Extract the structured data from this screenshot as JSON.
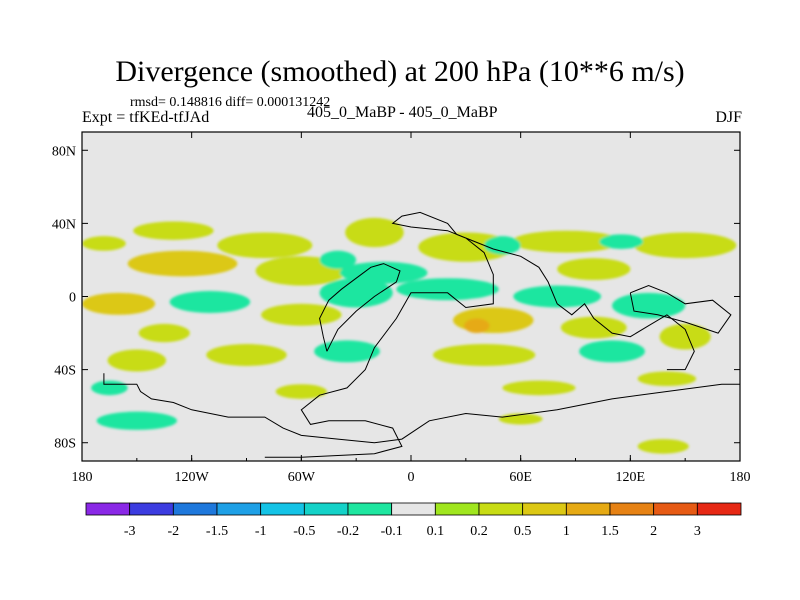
{
  "header": {
    "title": "Divergence (smoothed) at 200 hPa (10**6 m/s)",
    "stats": "rmsd= 0.148816 diff= 0.000131242",
    "left_label": "Expt = tfKEd-tfJAd",
    "center_label": "405_0_MaBP - 405_0_MaBP",
    "right_label": "DJF"
  },
  "chart_data": {
    "type": "heatmap",
    "title": "Divergence (smoothed) at 200 hPa (10**6 m/s)",
    "xlim": [
      -180,
      180
    ],
    "ylim": [
      -90,
      90
    ],
    "x_ticks": [
      {
        "value": -180,
        "label": "180"
      },
      {
        "value": -120,
        "label": "120W"
      },
      {
        "value": -60,
        "label": "60W"
      },
      {
        "value": 0,
        "label": "0"
      },
      {
        "value": 60,
        "label": "60E"
      },
      {
        "value": 120,
        "label": "120E"
      },
      {
        "value": 180,
        "label": "180"
      }
    ],
    "y_ticks": [
      {
        "value": 80,
        "label": "80N"
      },
      {
        "value": 40,
        "label": "40N"
      },
      {
        "value": 0,
        "label": "0"
      },
      {
        "value": -40,
        "label": "40S"
      },
      {
        "value": -80,
        "label": "80S"
      }
    ],
    "background_color": "#e6e6e6",
    "colorbar": {
      "colors": [
        "#8a28e6",
        "#3c3ce0",
        "#1e78dc",
        "#1ea0e6",
        "#14c3e6",
        "#14d2c8",
        "#1ee6a0",
        "#e6e6e6",
        "#a0e61e",
        "#c8dc14",
        "#dcc814",
        "#e6aa14",
        "#e68214",
        "#e65a14",
        "#e62814"
      ],
      "labels": [
        "-3",
        "-2",
        "-1.5",
        "-1",
        "-0.5",
        "-0.2",
        "-0.1",
        "0.1",
        "0.2",
        "0.5",
        "1",
        "1.5",
        "2",
        "3"
      ]
    },
    "features": [
      {
        "lon": -168,
        "lat": 29,
        "rx": 12,
        "ry": 4,
        "value": 0.25
      },
      {
        "lon": -130,
        "lat": 36,
        "rx": 22,
        "ry": 5,
        "value": 0.25
      },
      {
        "lon": -80,
        "lat": 28,
        "rx": 26,
        "ry": 7,
        "value": 0.25
      },
      {
        "lon": -20,
        "lat": 35,
        "rx": 16,
        "ry": 8,
        "value": 0.25
      },
      {
        "lon": -125,
        "lat": 18,
        "rx": 30,
        "ry": 7,
        "value": 0.6
      },
      {
        "lon": -60,
        "lat": 14,
        "rx": 25,
        "ry": 8,
        "value": 0.25
      },
      {
        "lon": 30,
        "lat": 27,
        "rx": 26,
        "ry": 8,
        "value": 0.25
      },
      {
        "lon": 85,
        "lat": 30,
        "rx": 30,
        "ry": 6,
        "value": 0.25
      },
      {
        "lon": 150,
        "lat": 28,
        "rx": 28,
        "ry": 7,
        "value": 0.25
      },
      {
        "lon": 100,
        "lat": 15,
        "rx": 20,
        "ry": 6,
        "value": 0.25
      },
      {
        "lon": -15,
        "lat": 13,
        "rx": 24,
        "ry": 6,
        "value": -0.15
      },
      {
        "lon": 50,
        "lat": 28,
        "rx": 10,
        "ry": 5,
        "value": -0.15
      },
      {
        "lon": 115,
        "lat": 30,
        "rx": 12,
        "ry": 4,
        "value": -0.15
      },
      {
        "lon": -40,
        "lat": 20,
        "rx": 10,
        "ry": 5,
        "value": -0.15
      },
      {
        "lon": -160,
        "lat": -4,
        "rx": 20,
        "ry": 6,
        "value": 0.6
      },
      {
        "lon": -110,
        "lat": -3,
        "rx": 22,
        "ry": 6,
        "value": -0.15
      },
      {
        "lon": -30,
        "lat": 2,
        "rx": 20,
        "ry": 8,
        "value": -0.15
      },
      {
        "lon": 20,
        "lat": 4,
        "rx": 28,
        "ry": 6,
        "value": -0.15
      },
      {
        "lon": 80,
        "lat": 0,
        "rx": 24,
        "ry": 6,
        "value": -0.15
      },
      {
        "lon": 130,
        "lat": -5,
        "rx": 20,
        "ry": 7,
        "value": -0.15
      },
      {
        "lon": -60,
        "lat": -10,
        "rx": 22,
        "ry": 6,
        "value": 0.25
      },
      {
        "lon": 45,
        "lat": -13,
        "rx": 22,
        "ry": 7,
        "value": 0.6
      },
      {
        "lon": 36,
        "lat": -16,
        "rx": 7,
        "ry": 4,
        "value": 1.2
      },
      {
        "lon": 100,
        "lat": -17,
        "rx": 18,
        "ry": 6,
        "value": 0.25
      },
      {
        "lon": -135,
        "lat": -20,
        "rx": 14,
        "ry": 5,
        "value": 0.25
      },
      {
        "lon": -150,
        "lat": -35,
        "rx": 16,
        "ry": 6,
        "value": 0.25
      },
      {
        "lon": -90,
        "lat": -32,
        "rx": 22,
        "ry": 6,
        "value": 0.25
      },
      {
        "lon": -35,
        "lat": -30,
        "rx": 18,
        "ry": 6,
        "value": -0.15
      },
      {
        "lon": 40,
        "lat": -32,
        "rx": 28,
        "ry": 6,
        "value": 0.25
      },
      {
        "lon": 110,
        "lat": -30,
        "rx": 18,
        "ry": 6,
        "value": -0.15
      },
      {
        "lon": 150,
        "lat": -22,
        "rx": 14,
        "ry": 7,
        "value": 0.25
      },
      {
        "lon": -165,
        "lat": -50,
        "rx": 10,
        "ry": 4,
        "value": -0.15
      },
      {
        "lon": -60,
        "lat": -52,
        "rx": 14,
        "ry": 4,
        "value": 0.25
      },
      {
        "lon": 70,
        "lat": -50,
        "rx": 20,
        "ry": 4,
        "value": 0.25
      },
      {
        "lon": 140,
        "lat": -45,
        "rx": 16,
        "ry": 4,
        "value": 0.25
      },
      {
        "lon": -150,
        "lat": -68,
        "rx": 22,
        "ry": 5,
        "value": -0.15
      },
      {
        "lon": 60,
        "lat": -67,
        "rx": 12,
        "ry": 3,
        "value": 0.25
      },
      {
        "lon": 138,
        "lat": -82,
        "rx": 14,
        "ry": 4,
        "value": 0.25
      }
    ],
    "coastlines": [
      [
        [
          -168,
          -42
        ],
        [
          -168,
          -48
        ],
        [
          -150,
          -48
        ],
        [
          -148,
          -52
        ],
        [
          -142,
          -56
        ],
        [
          -130,
          -58
        ],
        [
          -120,
          -62
        ],
        [
          -100,
          -66
        ],
        [
          -80,
          -66
        ],
        [
          -70,
          -72
        ],
        [
          -60,
          -76
        ],
        [
          -40,
          -78
        ],
        [
          -20,
          -80
        ],
        [
          -5,
          -78
        ],
        [
          10,
          -68
        ],
        [
          30,
          -64
        ],
        [
          50,
          -66
        ],
        [
          80,
          -62
        ],
        [
          110,
          -56
        ],
        [
          140,
          -52
        ],
        [
          170,
          -48
        ],
        [
          180,
          -48
        ]
      ],
      [
        [
          -80,
          -88
        ],
        [
          -60,
          -88
        ],
        [
          -20,
          -86
        ],
        [
          -5,
          -82
        ],
        [
          -10,
          -72
        ],
        [
          -25,
          -68
        ],
        [
          -45,
          -68
        ],
        [
          -55,
          -70
        ],
        [
          -60,
          -62
        ],
        [
          -50,
          -54
        ],
        [
          -35,
          -50
        ],
        [
          -25,
          -40
        ],
        [
          -20,
          -28
        ],
        [
          -8,
          -12
        ],
        [
          0,
          2
        ],
        [
          20,
          2
        ],
        [
          30,
          -6
        ],
        [
          45,
          -4
        ],
        [
          45,
          12
        ],
        [
          40,
          24
        ],
        [
          30,
          32
        ],
        [
          20,
          36
        ],
        [
          0,
          38
        ],
        [
          -10,
          40
        ],
        [
          -5,
          44
        ],
        [
          5,
          46
        ],
        [
          20,
          40
        ],
        [
          25,
          34
        ],
        [
          45,
          26
        ],
        [
          60,
          22
        ],
        [
          70,
          16
        ],
        [
          75,
          8
        ],
        [
          80,
          -4
        ],
        [
          88,
          -10
        ],
        [
          95,
          -4
        ],
        [
          100,
          -12
        ],
        [
          110,
          -20
        ],
        [
          120,
          -22
        ],
        [
          130,
          -16
        ],
        [
          140,
          -10
        ],
        [
          150,
          -18
        ],
        [
          155,
          -30
        ],
        [
          150,
          -40
        ],
        [
          140,
          -40
        ]
      ],
      [
        [
          -46,
          -30
        ],
        [
          -40,
          -18
        ],
        [
          -30,
          -8
        ],
        [
          -20,
          0
        ],
        [
          -8,
          8
        ],
        [
          -6,
          14
        ],
        [
          -15,
          18
        ],
        [
          -22,
          16
        ],
        [
          -30,
          10
        ],
        [
          -38,
          4
        ],
        [
          -45,
          -2
        ],
        [
          -50,
          -12
        ],
        [
          -48,
          -22
        ],
        [
          -46,
          -30
        ]
      ],
      [
        [
          120,
          2
        ],
        [
          130,
          6
        ],
        [
          140,
          2
        ],
        [
          150,
          -4
        ],
        [
          165,
          -2
        ],
        [
          175,
          -10
        ],
        [
          168,
          -20
        ],
        [
          150,
          -14
        ],
        [
          135,
          -10
        ],
        [
          122,
          -8
        ],
        [
          120,
          2
        ]
      ]
    ]
  }
}
